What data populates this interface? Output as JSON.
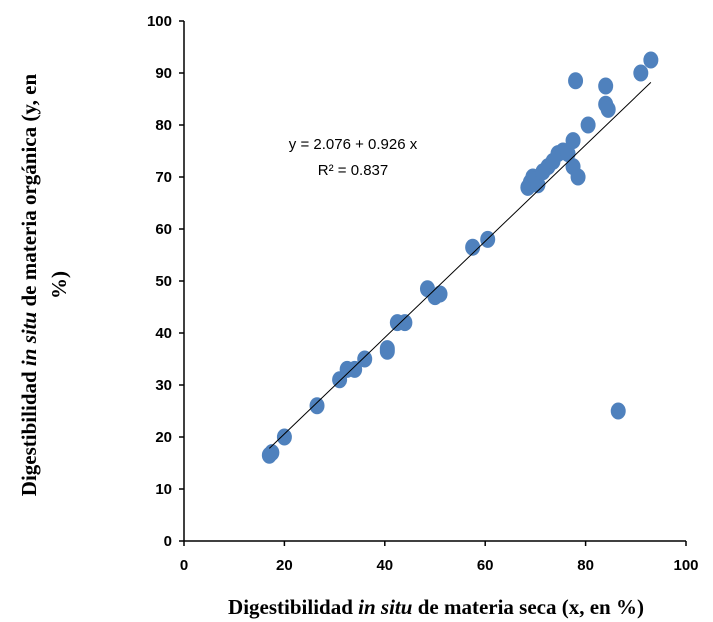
{
  "chart_data": {
    "type": "scatter",
    "xlabel": {
      "pre": "Digestibilidad ",
      "em": "in situ",
      "post": " de materia seca (x, en %)"
    },
    "ylabel": {
      "line1": {
        "pre": "Digestibilidad ",
        "em": "in situ",
        "post": " de materia orgánica (y, en"
      },
      "line2": "%)"
    },
    "xlim": [
      0,
      100
    ],
    "ylim": [
      0,
      100
    ],
    "x_ticks": [
      "0",
      "20",
      "40",
      "60",
      "80",
      "100"
    ],
    "y_ticks": [
      "0",
      "10",
      "20",
      "30",
      "40",
      "50",
      "60",
      "70",
      "80",
      "90",
      "100"
    ],
    "grid": false,
    "marker_color": "#4F81BD",
    "trendline_color": "#000000",
    "equation": "y = 2.076 + 0.926 x",
    "r_squared": "R² = 0.837",
    "trendline": {
      "intercept": 2.076,
      "slope": 0.926,
      "x_range": [
        17,
        93
      ]
    },
    "points": [
      {
        "x": 17.0,
        "y": 16.5
      },
      {
        "x": 17.5,
        "y": 17.0
      },
      {
        "x": 20.0,
        "y": 20.0
      },
      {
        "x": 26.5,
        "y": 26.0
      },
      {
        "x": 31.0,
        "y": 31.0
      },
      {
        "x": 32.5,
        "y": 33.0
      },
      {
        "x": 34.0,
        "y": 33.0
      },
      {
        "x": 36.0,
        "y": 35.0
      },
      {
        "x": 40.5,
        "y": 37.0
      },
      {
        "x": 40.5,
        "y": 36.5
      },
      {
        "x": 42.5,
        "y": 42.0
      },
      {
        "x": 44.0,
        "y": 42.0
      },
      {
        "x": 48.5,
        "y": 48.5
      },
      {
        "x": 50.0,
        "y": 47.0
      },
      {
        "x": 51.0,
        "y": 47.5
      },
      {
        "x": 57.5,
        "y": 56.5
      },
      {
        "x": 60.5,
        "y": 58.0
      },
      {
        "x": 68.5,
        "y": 68.0
      },
      {
        "x": 69.0,
        "y": 69.0
      },
      {
        "x": 69.5,
        "y": 70.0
      },
      {
        "x": 70.0,
        "y": 69.5
      },
      {
        "x": 70.5,
        "y": 68.5
      },
      {
        "x": 71.5,
        "y": 71.0
      },
      {
        "x": 72.5,
        "y": 72.0
      },
      {
        "x": 73.5,
        "y": 73.0
      },
      {
        "x": 74.5,
        "y": 74.5
      },
      {
        "x": 75.5,
        "y": 75.0
      },
      {
        "x": 76.5,
        "y": 74.5
      },
      {
        "x": 77.5,
        "y": 77.0
      },
      {
        "x": 77.5,
        "y": 72.0
      },
      {
        "x": 78.0,
        "y": 88.5
      },
      {
        "x": 78.5,
        "y": 70.0
      },
      {
        "x": 80.5,
        "y": 80.0
      },
      {
        "x": 84.0,
        "y": 87.5
      },
      {
        "x": 84.0,
        "y": 84.0
      },
      {
        "x": 84.5,
        "y": 83.0
      },
      {
        "x": 86.5,
        "y": 25.0
      },
      {
        "x": 91.0,
        "y": 90.0
      },
      {
        "x": 93.0,
        "y": 92.5
      }
    ]
  }
}
